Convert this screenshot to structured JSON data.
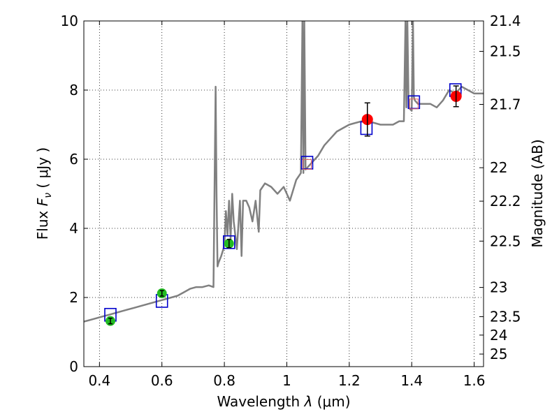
{
  "chart_data": {
    "type": "line",
    "xlabel": "Wavelength  λ (μm)",
    "ylabel": "Flux  F_ν  ( μJy )",
    "ylabel_parts": {
      "flux": "Flux",
      "symbol": "F",
      "subscript": "ν",
      "unit": "( μJy )"
    },
    "xlabel_parts": {
      "text": "Wavelength",
      "symbol": "λ",
      "unit": "(μm)"
    },
    "y2label": "Magnitude (AB)",
    "xlim": [
      0.35,
      1.63
    ],
    "ylim": [
      0,
      10
    ],
    "grid": true,
    "x_ticks": [
      {
        "value": 0.4,
        "label": "0.4"
      },
      {
        "value": 0.6,
        "label": "0.6"
      },
      {
        "value": 0.8,
        "label": "0.8"
      },
      {
        "value": 1.0,
        "label": "1"
      },
      {
        "value": 1.2,
        "label": "1.2"
      },
      {
        "value": 1.4,
        "label": "1.4"
      },
      {
        "value": 1.6,
        "label": "1.6"
      }
    ],
    "y_ticks": [
      {
        "value": 0,
        "label": "0"
      },
      {
        "value": 2,
        "label": "2"
      },
      {
        "value": 4,
        "label": "4"
      },
      {
        "value": 6,
        "label": "6"
      },
      {
        "value": 8,
        "label": "8"
      },
      {
        "value": 10,
        "label": "10"
      }
    ],
    "mag_ticks": [
      {
        "value": 21.4,
        "label": "21.4"
      },
      {
        "value": 21.5,
        "label": "21.5"
      },
      {
        "value": 21.7,
        "label": "21.7"
      },
      {
        "value": 22,
        "label": "22"
      },
      {
        "value": 22.2,
        "label": "22.2"
      },
      {
        "value": 22.5,
        "label": "22.5"
      },
      {
        "value": 23,
        "label": "23"
      },
      {
        "value": 23.5,
        "label": "23.5"
      },
      {
        "value": 24,
        "label": "24"
      },
      {
        "value": 25,
        "label": "25"
      }
    ],
    "series": [
      {
        "name": "model spectrum",
        "color": "#808080",
        "x": [
          0.35,
          0.37,
          0.39,
          0.41,
          0.43,
          0.45,
          0.47,
          0.49,
          0.51,
          0.53,
          0.55,
          0.57,
          0.59,
          0.61,
          0.63,
          0.65,
          0.67,
          0.69,
          0.71,
          0.73,
          0.75,
          0.765,
          0.772,
          0.775,
          0.778,
          0.781,
          0.79,
          0.8,
          0.805,
          0.81,
          0.815,
          0.82,
          0.825,
          0.83,
          0.84,
          0.85,
          0.855,
          0.86,
          0.87,
          0.88,
          0.89,
          0.9,
          0.91,
          0.915,
          0.93,
          0.95,
          0.97,
          0.99,
          1.01,
          1.03,
          1.045,
          1.05,
          1.053,
          1.056,
          1.06,
          1.08,
          1.1,
          1.12,
          1.14,
          1.16,
          1.18,
          1.2,
          1.22,
          1.24,
          1.26,
          1.28,
          1.3,
          1.32,
          1.34,
          1.36,
          1.375,
          1.38,
          1.383,
          1.386,
          1.39,
          1.4,
          1.404,
          1.407,
          1.41,
          1.42,
          1.44,
          1.46,
          1.48,
          1.5,
          1.52,
          1.54,
          1.56,
          1.58,
          1.6,
          1.63
        ],
        "y": [
          1.3,
          1.35,
          1.4,
          1.45,
          1.5,
          1.55,
          1.6,
          1.65,
          1.7,
          1.75,
          1.8,
          1.85,
          1.9,
          1.95,
          2.0,
          2.05,
          2.15,
          2.25,
          2.3,
          2.3,
          2.35,
          2.3,
          8.1,
          5.0,
          2.9,
          3.0,
          3.2,
          3.5,
          4.5,
          3.8,
          4.8,
          3.7,
          5.0,
          4.2,
          3.4,
          4.8,
          3.2,
          4.8,
          4.8,
          4.6,
          4.2,
          4.8,
          3.9,
          5.1,
          5.3,
          5.2,
          5.0,
          5.2,
          4.8,
          5.4,
          5.6,
          10,
          5.6,
          10,
          5.7,
          5.9,
          6.1,
          6.4,
          6.6,
          6.8,
          6.9,
          7.0,
          7.05,
          7.1,
          7.1,
          7.05,
          7.0,
          7.0,
          7.0,
          7.1,
          7.1,
          10,
          7.5,
          10,
          7.5,
          7.4,
          10,
          7.8,
          7.7,
          7.6,
          7.6,
          7.6,
          7.5,
          7.7,
          8.0,
          7.9,
          8.1,
          8.0,
          7.9,
          7.9
        ]
      },
      {
        "name": "blue squares",
        "color": "#0000cc",
        "x": [
          0.435,
          0.6,
          0.815,
          1.065,
          1.255,
          1.407,
          1.54
        ],
        "y": [
          1.5,
          1.9,
          3.6,
          5.9,
          6.9,
          7.65,
          8.0
        ]
      },
      {
        "name": "red squares",
        "color": "#e06060",
        "x": [
          1.065,
          1.407
        ],
        "y": [
          5.85,
          7.6
        ]
      },
      {
        "name": "green points",
        "color": "#22bb22",
        "x": [
          0.435,
          0.6,
          0.815
        ],
        "y": [
          1.32,
          2.12,
          3.56
        ],
        "err": [
          0.08,
          0.08,
          0.12
        ]
      },
      {
        "name": "red points",
        "color": "#ff0000",
        "x": [
          1.258,
          1.542
        ],
        "y": [
          7.15,
          7.82
        ],
        "err": [
          0.48,
          0.3
        ]
      }
    ]
  }
}
